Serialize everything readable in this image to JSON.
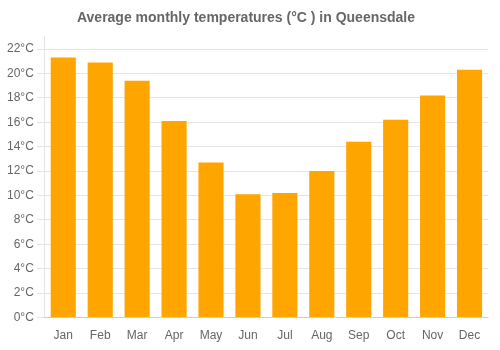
{
  "chart_data": {
    "type": "bar",
    "title": "Average monthly temperatures (°C ) in Queensdale",
    "categories": [
      "Jan",
      "Feb",
      "Mar",
      "Apr",
      "May",
      "Jun",
      "Jul",
      "Aug",
      "Sep",
      "Oct",
      "Nov",
      "Dec"
    ],
    "values": [
      21.3,
      20.9,
      19.4,
      16.1,
      12.7,
      10.1,
      10.2,
      12.0,
      14.4,
      16.2,
      18.2,
      20.3
    ],
    "color": "#FFA500",
    "ylim": [
      0,
      23
    ],
    "yticks": [
      {
        "value": 0,
        "label": "0°C"
      },
      {
        "value": 2,
        "label": "2°C"
      },
      {
        "value": 4,
        "label": "4°C"
      },
      {
        "value": 6,
        "label": "6°C"
      },
      {
        "value": 8,
        "label": "8°C"
      },
      {
        "value": 10,
        "label": "10°C"
      },
      {
        "value": 12,
        "label": "12°C"
      },
      {
        "value": 14,
        "label": "14°C"
      },
      {
        "value": 16,
        "label": "16°C"
      },
      {
        "value": 18,
        "label": "18°C"
      },
      {
        "value": 20,
        "label": "20°C"
      },
      {
        "value": 22,
        "label": "22°C"
      }
    ],
    "grid": true
  }
}
